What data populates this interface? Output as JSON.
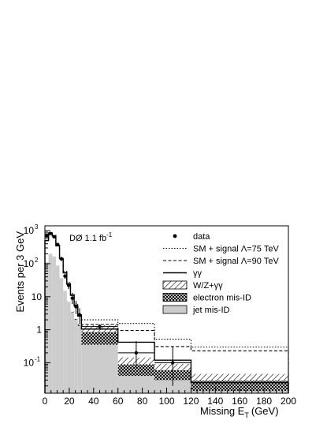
{
  "chart_data": {
    "type": "bar",
    "xlabel": "Missing E",
    "xlabel_sub": "T",
    "xlabel_unit": "(GeV)",
    "ylabel": "Events per 3 GeV",
    "xlim": [
      0,
      200
    ],
    "ylim": [
      0.012,
      1400
    ],
    "yscale": "log",
    "x_ticks": [
      0,
      20,
      40,
      60,
      80,
      100,
      120,
      140,
      160,
      180,
      200
    ],
    "y_ticks": [
      {
        "value": 0.1,
        "base": "10",
        "exp": "-1"
      },
      {
        "value": 1,
        "base": "1",
        "exp": ""
      },
      {
        "value": 10,
        "base": "10",
        "exp": ""
      },
      {
        "value": 100,
        "base": "10",
        "exp": "2"
      },
      {
        "value": 1000,
        "base": "10",
        "exp": "3"
      }
    ],
    "annotation": {
      "text": "DØ 1.1 fb",
      "sup": "-1"
    },
    "legend_position": "top-right",
    "bin_edges": [
      0,
      3,
      6,
      9,
      12,
      15,
      18,
      21,
      24,
      27,
      30,
      60,
      90,
      120,
      200
    ],
    "series": [
      {
        "name": "SM + signal Λ=75 TeV",
        "style": "dotted",
        "values": [
          520,
          880,
          720,
          360,
          150,
          58,
          27,
          12.5,
          6.2,
          3.1,
          2.0,
          1.55,
          0.52,
          0.3
        ]
      },
      {
        "name": "SM + signal Λ=90 TeV",
        "style": "dashed",
        "values": [
          505,
          860,
          700,
          350,
          145,
          55,
          25,
          11.5,
          5.6,
          2.8,
          1.45,
          0.95,
          0.31,
          0.23
        ]
      },
      {
        "name": "γγ",
        "style": "solid",
        "values": [
          500,
          850,
          690,
          345,
          142,
          53,
          24,
          11,
          5.3,
          2.6,
          1.05,
          0.42,
          0.12,
          0.025
        ]
      },
      {
        "name": "W/Z+γγ",
        "style": "hatched",
        "values": [
          0.12,
          0.12,
          0.12,
          0.12,
          0.12,
          0.12,
          0.12,
          0.12,
          0.12,
          0.12,
          0.55,
          0.055,
          0.033,
          0.017
        ]
      },
      {
        "name": "electron mis-ID",
        "style": "crosshatched",
        "values": [
          0.11,
          0.11,
          0.11,
          0.11,
          0.11,
          0.11,
          0.11,
          0.11,
          0.11,
          0.11,
          0.5,
          0.05,
          0.03,
          0.015
        ]
      },
      {
        "name": "jet mis-ID",
        "style": "filled-gray",
        "values": [
          110,
          200,
          165,
          88,
          36,
          15,
          7,
          3.4,
          2.0,
          1.3,
          0.35,
          0.04,
          0.03,
          0.014
        ]
      }
    ],
    "data_points": {
      "name": "data",
      "points": [
        {
          "x": 1.5,
          "y": 700,
          "lo": 650,
          "hi": 750
        },
        {
          "x": 4.5,
          "y": 820,
          "lo": 765,
          "hi": 875
        },
        {
          "x": 7.5,
          "y": 650,
          "lo": 600,
          "hi": 700
        },
        {
          "x": 10.5,
          "y": 380,
          "lo": 345,
          "hi": 420
        },
        {
          "x": 13.5,
          "y": 140,
          "lo": 120,
          "hi": 162
        },
        {
          "x": 16.5,
          "y": 42,
          "lo": 35,
          "hi": 50
        },
        {
          "x": 19.5,
          "y": 22,
          "lo": 17,
          "hi": 27
        },
        {
          "x": 22.5,
          "y": 9,
          "lo": 6,
          "hi": 12.5
        },
        {
          "x": 25.5,
          "y": 5,
          "lo": 3,
          "hi": 7.5
        },
        {
          "x": 28.5,
          "y": 2.8,
          "lo": 1.5,
          "hi": 4.5
        },
        {
          "x": 45,
          "y": 1.25,
          "lo": 1.06,
          "hi": 1.45,
          "xerr": 15
        },
        {
          "x": 75,
          "y": 0.2,
          "lo": 0.07,
          "hi": 0.45,
          "xerr": 15
        },
        {
          "x": 105,
          "y": 0.1,
          "lo": 0.02,
          "hi": 0.3,
          "xerr": 15
        }
      ]
    }
  }
}
